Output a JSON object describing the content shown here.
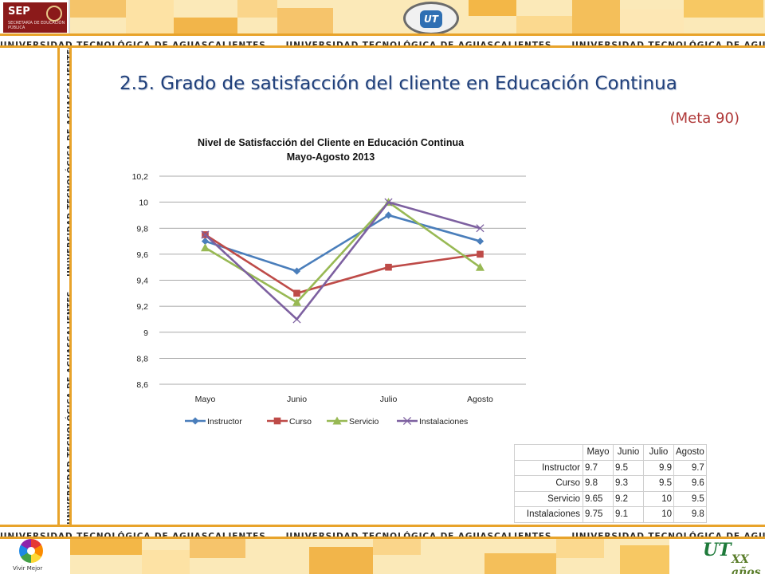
{
  "header": {
    "sep_logo": {
      "text": "SEP",
      "subtitle": "SECRETARÍA DE EDUCACIÓN PÚBLICA"
    },
    "institution_band": "UNIVERSIDAD TECNOLÓGICA DE AGUASCALIENTES"
  },
  "slide": {
    "title": "2.5. Grado de satisfacción del cliente en Educación Continua",
    "subtitle": "(Meta 90)"
  },
  "chart_data": {
    "type": "line",
    "title": "Nivel de Satisfacción del Cliente en Educación Continua",
    "subtitle": "Mayo-Agosto 2013",
    "categories": [
      "Mayo",
      "Junio",
      "Julio",
      "Agosto"
    ],
    "ylim": [
      8.6,
      10.2
    ],
    "yticks": [
      "8,6",
      "8,8",
      "9",
      "9,2",
      "9,4",
      "9,6",
      "9,8",
      "10",
      "10,2"
    ],
    "grid": true,
    "legend_position": "bottom",
    "series": [
      {
        "name": "Instructor",
        "values": [
          9.7,
          9.47,
          9.9,
          9.7
        ],
        "color": "#4a7ebb",
        "marker": "diamond"
      },
      {
        "name": "Curso",
        "values": [
          9.75,
          9.3,
          9.5,
          9.6
        ],
        "color": "#be4b48",
        "marker": "square"
      },
      {
        "name": "Servicio",
        "values": [
          9.65,
          9.23,
          10.0,
          9.5
        ],
        "color": "#98b954",
        "marker": "triangle"
      },
      {
        "name": "Instalaciones",
        "values": [
          9.75,
          9.1,
          10.0,
          9.8
        ],
        "color": "#7d60a0",
        "marker": "x"
      }
    ]
  },
  "table": {
    "headers": [
      "Mayo",
      "Junio",
      "Julio",
      "Agosto"
    ],
    "rows": [
      {
        "label": "Instructor",
        "cells": [
          "9.7",
          "9.5",
          "9.9",
          "9.7"
        ]
      },
      {
        "label": "Curso",
        "cells": [
          "9.8",
          "9.3",
          "9.5",
          "9.6"
        ]
      },
      {
        "label": "Servicio",
        "cells": [
          "9.65",
          "9.2",
          "10",
          "9.5"
        ]
      },
      {
        "label": "Instalaciones",
        "cells": [
          "9.75",
          "9.1",
          "10",
          "9.8"
        ]
      }
    ]
  },
  "footer": {
    "vivir_mejor": "Vivir Mejor",
    "ut_mark": "UT",
    "anniversary": "XX años"
  }
}
